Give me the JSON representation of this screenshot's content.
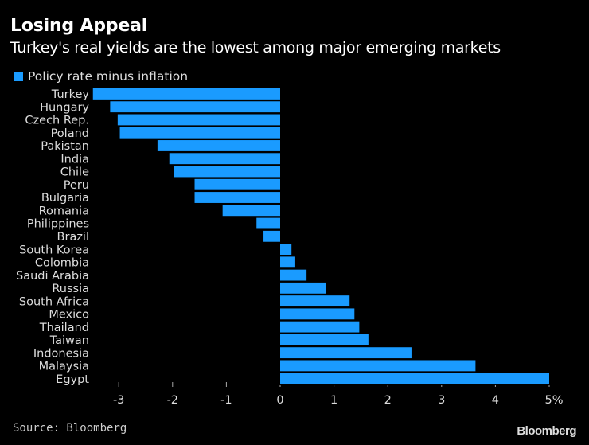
{
  "chart_data": {
    "type": "bar",
    "orientation": "horizontal",
    "title": "Losing Appeal",
    "subtitle": "Turkey's real yields are the lowest among major emerging markets",
    "categories": [
      "Turkey",
      "Hungary",
      "Czech Rep.",
      "Poland",
      "Pakistan",
      "India",
      "Chile",
      "Peru",
      "Bulgaria",
      "Romania",
      "Philippines",
      "Brazil",
      "South Korea",
      "Colombia",
      "Saudi Arabia",
      "Russia",
      "South Africa",
      "Mexico",
      "Thailand",
      "Taiwan",
      "Indonesia",
      "Malaysia",
      "Egypt"
    ],
    "series": [
      {
        "name": "Policy rate minus inflation",
        "color": "#1a9bff",
        "values": [
          -3.48,
          -3.16,
          -3.02,
          -2.98,
          -2.28,
          -2.06,
          -1.97,
          -1.59,
          -1.59,
          -1.07,
          -0.44,
          -0.31,
          0.21,
          0.28,
          0.49,
          0.85,
          1.29,
          1.38,
          1.47,
          1.64,
          2.44,
          3.63,
          5.0
        ]
      }
    ],
    "xlim": [
      -3.5,
      5
    ],
    "xticks": [
      -3,
      -2,
      -1,
      0,
      1,
      2,
      3,
      4,
      5
    ],
    "xtick_labels": [
      "-3",
      "-2",
      "-1",
      "0",
      "1",
      "2",
      "3",
      "4",
      "5%"
    ],
    "xlabel": "",
    "ylabel": "",
    "grid": false,
    "legend": "top-left"
  },
  "legend_label": "Policy rate minus inflation",
  "footer": {
    "source": "Source: Bloomberg",
    "brand": "Bloomberg"
  }
}
